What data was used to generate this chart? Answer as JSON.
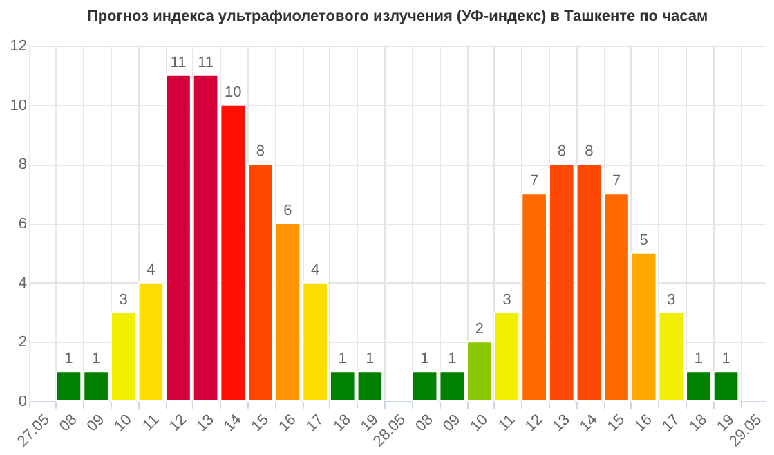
{
  "chart_data": {
    "type": "bar",
    "title": "Прогноз индекса ультрафиолетового излучения (УФ-индекс) в Ташкенте по часам",
    "categories": [
      "27.05",
      "08",
      "09",
      "10",
      "11",
      "12",
      "13",
      "14",
      "15",
      "16",
      "17",
      "18",
      "19",
      "28.05",
      "08",
      "09",
      "10",
      "11",
      "12",
      "13",
      "14",
      "15",
      "16",
      "17",
      "18",
      "19",
      "29.05"
    ],
    "values": [
      null,
      1,
      1,
      3,
      4,
      11,
      11,
      10,
      8,
      6,
      4,
      1,
      1,
      null,
      1,
      1,
      2,
      3,
      7,
      8,
      8,
      7,
      5,
      3,
      1,
      1,
      null
    ],
    "colors": [
      null,
      "#008000",
      "#008000",
      "#f0f000",
      "#ffdd00",
      "#d4003a",
      "#d4003a",
      "#ff1000",
      "#ff4800",
      "#ff9600",
      "#ffdd00",
      "#008000",
      "#008000",
      null,
      "#008000",
      "#008000",
      "#8cc800",
      "#f0f000",
      "#ff6a00",
      "#ff4800",
      "#ff4800",
      "#ff6a00",
      "#ffa800",
      "#f0f000",
      "#008000",
      "#008000",
      null
    ],
    "ylim": [
      0,
      12
    ],
    "yticks": [
      0,
      2,
      4,
      6,
      8,
      10,
      12
    ],
    "grid": true,
    "data_labels": true
  }
}
